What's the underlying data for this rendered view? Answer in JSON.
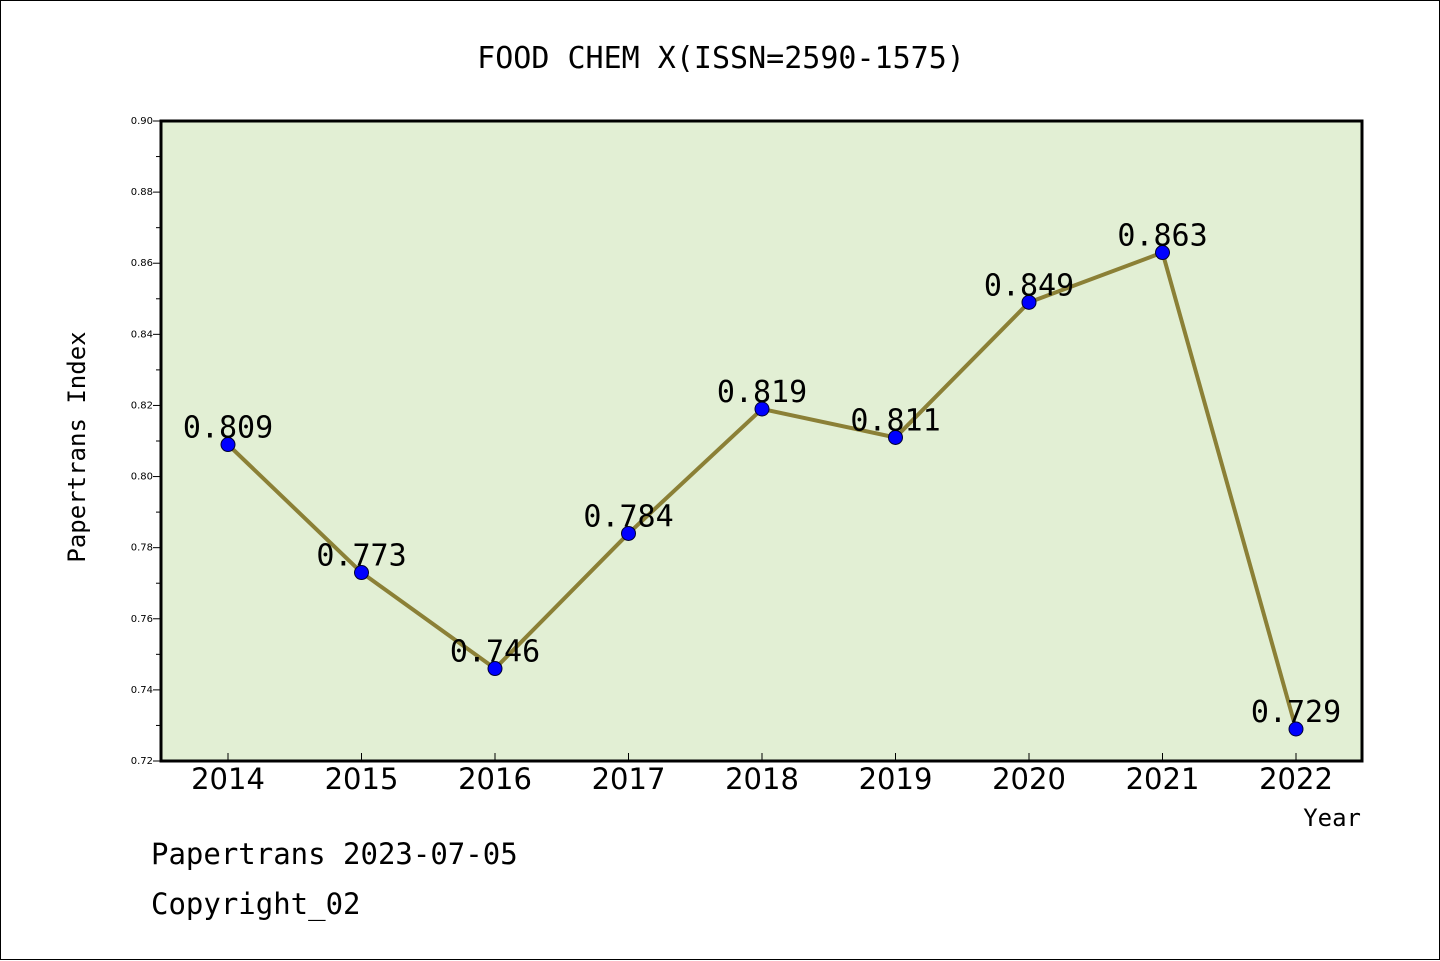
{
  "chart_data": {
    "type": "line",
    "title": "FOOD CHEM X(ISSN=2590-1575)",
    "xlabel": "Year",
    "ylabel": "Papertrans Index",
    "categories": [
      "2014",
      "2015",
      "2016",
      "2017",
      "2018",
      "2019",
      "2020",
      "2021",
      "2022"
    ],
    "series": [
      {
        "values": [
          0.809,
          0.773,
          0.746,
          0.784,
          0.819,
          0.811,
          0.849,
          0.863,
          0.729
        ],
        "labels": [
          "0.809",
          "0.773",
          "0.746",
          "0.784",
          "0.819",
          "0.811",
          "0.849",
          "0.863",
          "0.729"
        ],
        "line_color": "#8B8036",
        "marker_color": "#0000FF"
      }
    ],
    "ylim": [
      0.72,
      0.9
    ],
    "yticks": [
      "0.72",
      "0.74",
      "0.76",
      "0.78",
      "0.80",
      "0.82",
      "0.84",
      "0.86",
      "0.88",
      "0.90"
    ],
    "plot_background": "#E2EFD4",
    "grid": false,
    "legend": "none"
  },
  "footer": {
    "line1": "Papertrans 2023-07-05",
    "line2": "Copyright_02"
  }
}
